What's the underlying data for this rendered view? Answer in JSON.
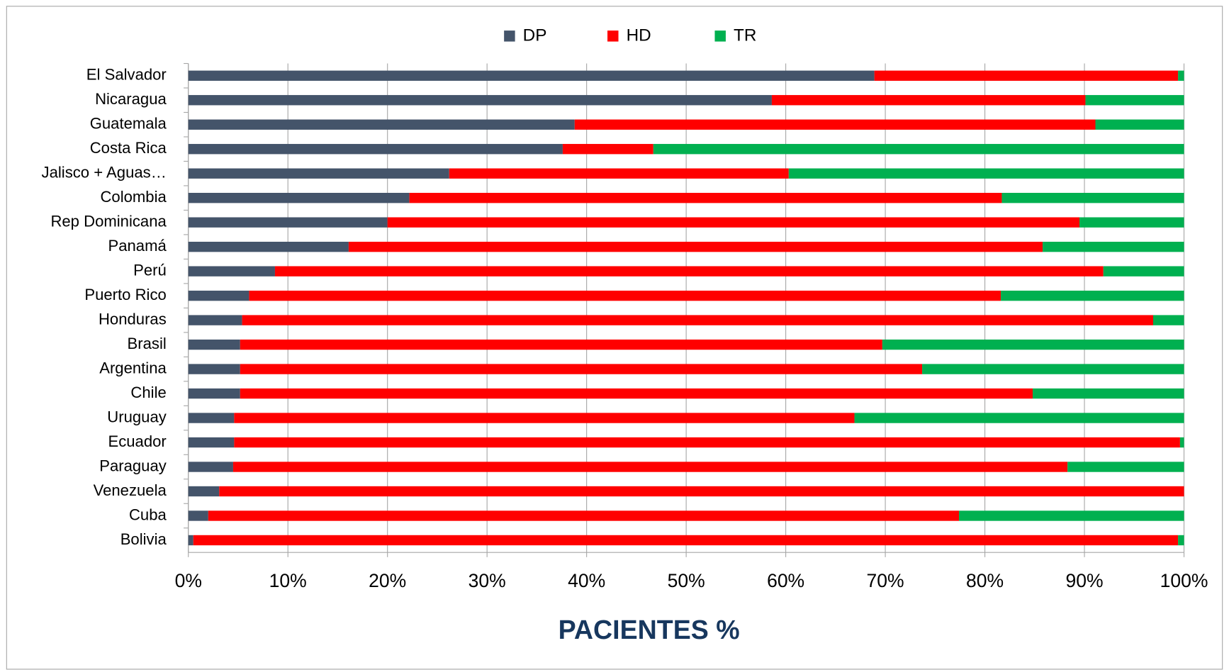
{
  "chart_data": {
    "type": "stacked-barh",
    "x_label": "PACIENTES %",
    "categories": [
      "El Salvador",
      "Nicaragua",
      "Guatemala",
      "Costa Rica",
      "Jalisco + Aguas…",
      "Colombia",
      "Rep Dominicana",
      "Panamá",
      "Perú",
      "Puerto Rico",
      "Honduras",
      "Brasil",
      "Argentina",
      "Chile",
      "Uruguay",
      "Ecuador",
      "Paraguay",
      "Venezuela",
      "Cuba",
      "Bolivia"
    ],
    "series": [
      {
        "name": "DP",
        "color": "#44546a",
        "values": [
          68.9,
          58.6,
          38.8,
          37.6,
          26.2,
          22.2,
          20.0,
          16.1,
          8.7,
          6.1,
          5.4,
          5.2,
          5.2,
          5.2,
          4.6,
          4.6,
          4.5,
          3.1,
          2.0,
          0.5
        ]
      },
      {
        "name": "HD",
        "color": "#ff0000",
        "values": [
          30.5,
          31.5,
          52.3,
          9.1,
          34.1,
          59.5,
          69.5,
          69.7,
          83.2,
          75.5,
          91.5,
          64.5,
          68.5,
          79.6,
          62.3,
          95.0,
          83.8,
          96.9,
          75.4,
          98.9
        ]
      },
      {
        "name": "TR",
        "color": "#00b050",
        "values": [
          0.6,
          9.9,
          8.9,
          53.3,
          39.7,
          18.3,
          10.5,
          14.2,
          8.1,
          18.4,
          3.1,
          30.3,
          26.3,
          15.2,
          33.1,
          0.4,
          11.7,
          0,
          22.6,
          0.6
        ]
      }
    ],
    "xlim": [
      0,
      100
    ],
    "xticks": [
      {
        "value": 0,
        "label": "0%"
      },
      {
        "value": 10,
        "label": "10%"
      },
      {
        "value": 20,
        "label": "20%"
      },
      {
        "value": 30,
        "label": "30%"
      },
      {
        "value": 40,
        "label": "40%"
      },
      {
        "value": 50,
        "label": "50%"
      },
      {
        "value": 60,
        "label": "60%"
      },
      {
        "value": 70,
        "label": "70%"
      },
      {
        "value": 80,
        "label": "80%"
      },
      {
        "value": 90,
        "label": "90%"
      },
      {
        "value": 100,
        "label": "100%"
      }
    ],
    "grid": true,
    "legend": "top"
  }
}
